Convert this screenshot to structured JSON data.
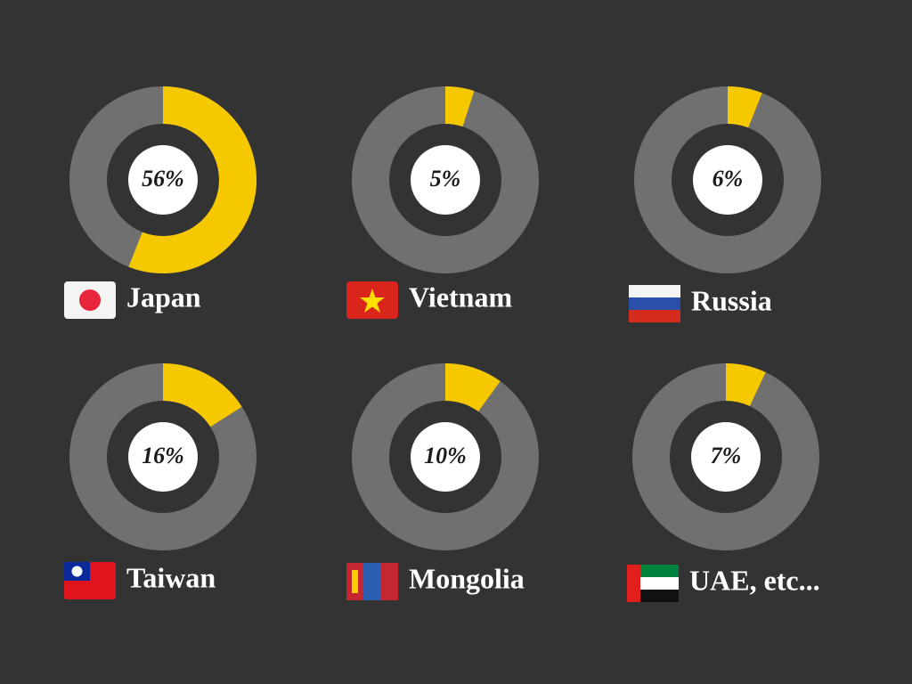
{
  "chart_data": [
    {
      "type": "donut",
      "categories": [
        "Japan"
      ],
      "values": [
        56
      ],
      "value_labels": [
        "56%"
      ],
      "color": "#f5c800"
    },
    {
      "type": "donut",
      "categories": [
        "Vietnam"
      ],
      "values": [
        5
      ],
      "value_labels": [
        "5%"
      ],
      "color": "#f5c800"
    },
    {
      "type": "donut",
      "categories": [
        "Russia"
      ],
      "values": [
        6
      ],
      "value_labels": [
        "6%"
      ],
      "color": "#f5c800"
    },
    {
      "type": "donut",
      "categories": [
        "Taiwan"
      ],
      "values": [
        16
      ],
      "value_labels": [
        "16%"
      ],
      "color": "#f5c800"
    },
    {
      "type": "donut",
      "categories": [
        "Mongolia"
      ],
      "values": [
        10
      ],
      "value_labels": [
        "10%"
      ],
      "color": "#f5c800"
    },
    {
      "type": "donut",
      "categories": [
        "UAE, etc..."
      ],
      "values": [
        7
      ],
      "value_labels": [
        "7%"
      ],
      "color": "#f5c800"
    }
  ]
}
